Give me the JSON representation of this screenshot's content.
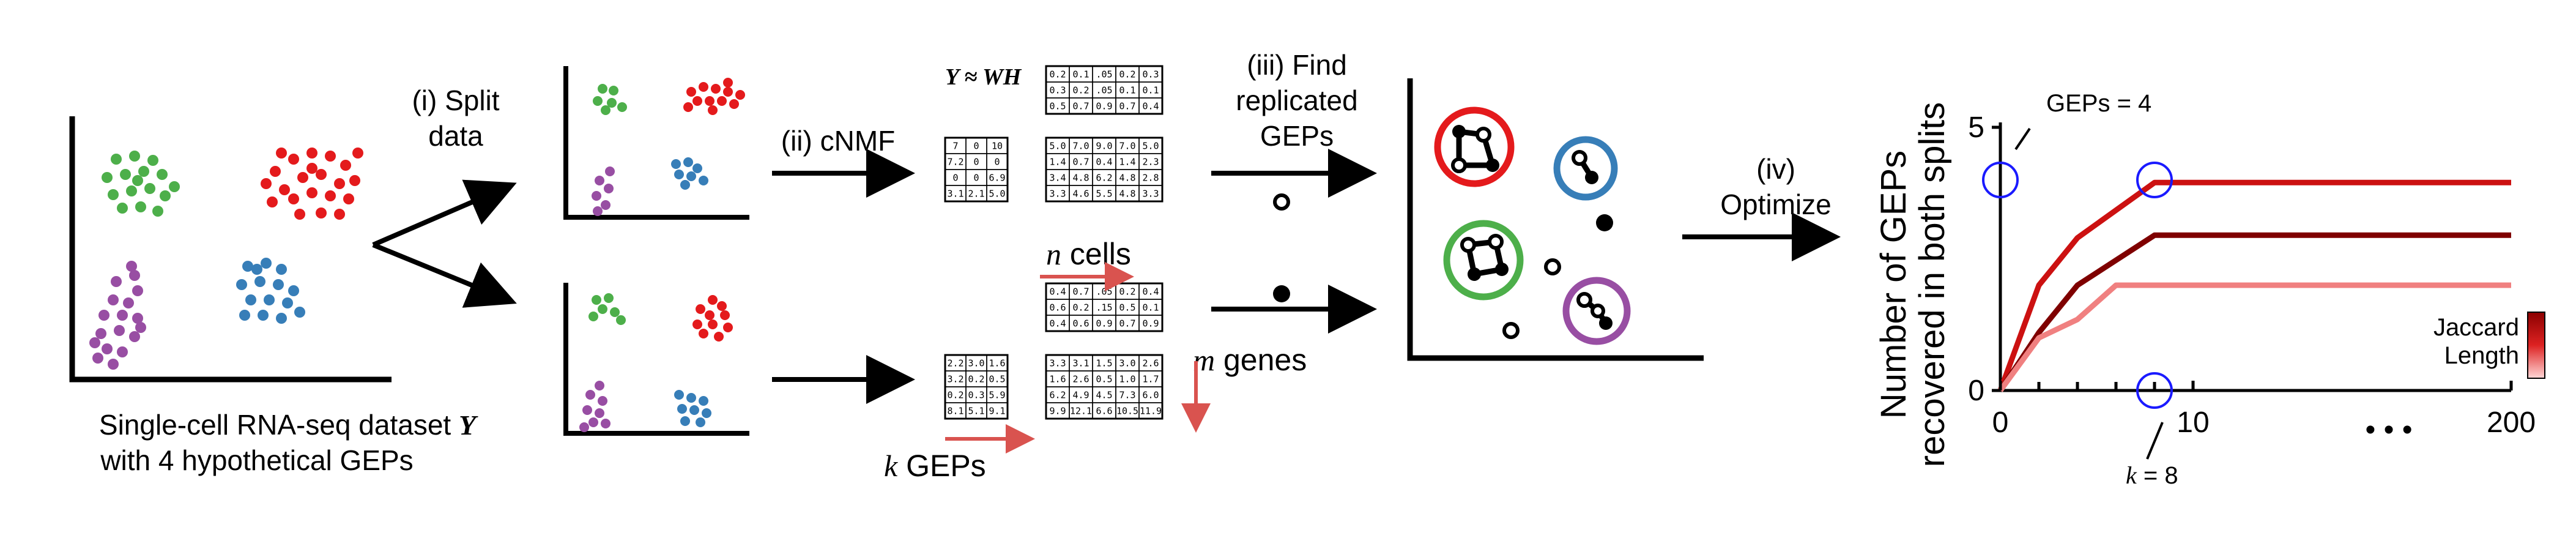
{
  "colors": {
    "green": "#4daf4a",
    "red": "#e41a1c",
    "purple": "#984ea3",
    "blue": "#377eb8",
    "line_dark": "#7f0000",
    "line_mid": "#cc1111",
    "line_light": "#f08080",
    "marker": "#1a1aff"
  },
  "panel1": {
    "caption_line1_prefix": "Single-cell RNA-seq dataset ",
    "caption_line1_var": "Y",
    "caption_line2": "with 4 hypothetical GEPs"
  },
  "step1": {
    "line1": "(i) Split",
    "line2": "data"
  },
  "step2": {
    "label": "(ii) cNMF"
  },
  "step3": {
    "line1": "(iii) Find",
    "line2": "replicated",
    "line3": "GEPs"
  },
  "step4": {
    "line1": "(iv)",
    "line2": "Optimize"
  },
  "factorization": {
    "equation": "Y ≈ WH",
    "n_label_var": "n",
    "n_label_text": " cells",
    "m_label_var": "m",
    "m_label_text": " genes",
    "k_label_var": "k",
    "k_label_text": " GEPs"
  },
  "matrices": {
    "top_H": [
      [
        "0.2",
        "0.1",
        ".05",
        "0.2",
        "0.3"
      ],
      [
        "0.3",
        "0.2",
        ".05",
        "0.1",
        "0.1"
      ],
      [
        "0.5",
        "0.7",
        "0.9",
        "0.7",
        "0.4"
      ]
    ],
    "top_W": [
      [
        "7",
        "0",
        "10"
      ],
      [
        "7.2",
        "0",
        "0"
      ],
      [
        "0",
        "0",
        "6.9"
      ],
      [
        "3.1",
        "2.1",
        "5.0"
      ]
    ],
    "top_Y": [
      [
        "5.0",
        "7.0",
        "9.0",
        "7.0",
        "5.0"
      ],
      [
        "1.4",
        "0.7",
        "0.4",
        "1.4",
        "2.3"
      ],
      [
        "3.4",
        "4.8",
        "6.2",
        "4.8",
        "2.8"
      ],
      [
        "3.3",
        "4.6",
        "5.5",
        "4.8",
        "3.3"
      ]
    ],
    "bot_H": [
      [
        "0.4",
        "0.7",
        ".05",
        "0.2",
        "0.4"
      ],
      [
        "0.6",
        "0.2",
        ".15",
        "0.5",
        "0.1"
      ],
      [
        "0.4",
        "0.6",
        "0.9",
        "0.7",
        "0.9"
      ]
    ],
    "bot_W": [
      [
        "2.2",
        "3.0",
        "1.6"
      ],
      [
        "3.2",
        "0.2",
        "0.5"
      ],
      [
        "0.2",
        "0.3",
        "5.9"
      ],
      [
        "8.1",
        "5.1",
        "9.1"
      ]
    ],
    "bot_Y": [
      [
        "3.3",
        "3.1",
        "1.5",
        "3.0",
        "2.6"
      ],
      [
        "1.6",
        "2.6",
        "0.5",
        "1.0",
        "1.7"
      ],
      [
        "6.2",
        "4.9",
        "4.5",
        "7.3",
        "6.0"
      ],
      [
        "9.9",
        "12.1",
        "6.6",
        "10.5",
        "11.9"
      ]
    ]
  },
  "chart_data": {
    "type": "line",
    "ylabel_line1": "Number of GEPs",
    "ylabel_line2": "recovered in both splits",
    "ylim": [
      0,
      5
    ],
    "yticks": [
      "0",
      "5"
    ],
    "xticks": [
      "0",
      "10",
      "200"
    ],
    "x_ellipsis": "• • •",
    "legend": {
      "line1": "Jaccard",
      "line2": "Length",
      "placement": "right"
    },
    "annotations": {
      "geps": "GEPs = 4",
      "k_var": "k",
      "k_text": " = 8"
    },
    "series": [
      {
        "color": "#cc1111",
        "x": [
          0,
          2,
          4,
          8,
          10,
          200
        ],
        "y": [
          0,
          2,
          2.9,
          3.95,
          3.95,
          3.95
        ]
      },
      {
        "color": "#7f0000",
        "x": [
          0,
          2,
          4,
          8,
          10,
          200
        ],
        "y": [
          0,
          1.1,
          2,
          2.95,
          2.95,
          2.95
        ]
      },
      {
        "color": "#f08080",
        "x": [
          0,
          2,
          4,
          6,
          10,
          200
        ],
        "y": [
          0,
          1,
          1.35,
          2,
          2,
          2
        ]
      }
    ]
  }
}
